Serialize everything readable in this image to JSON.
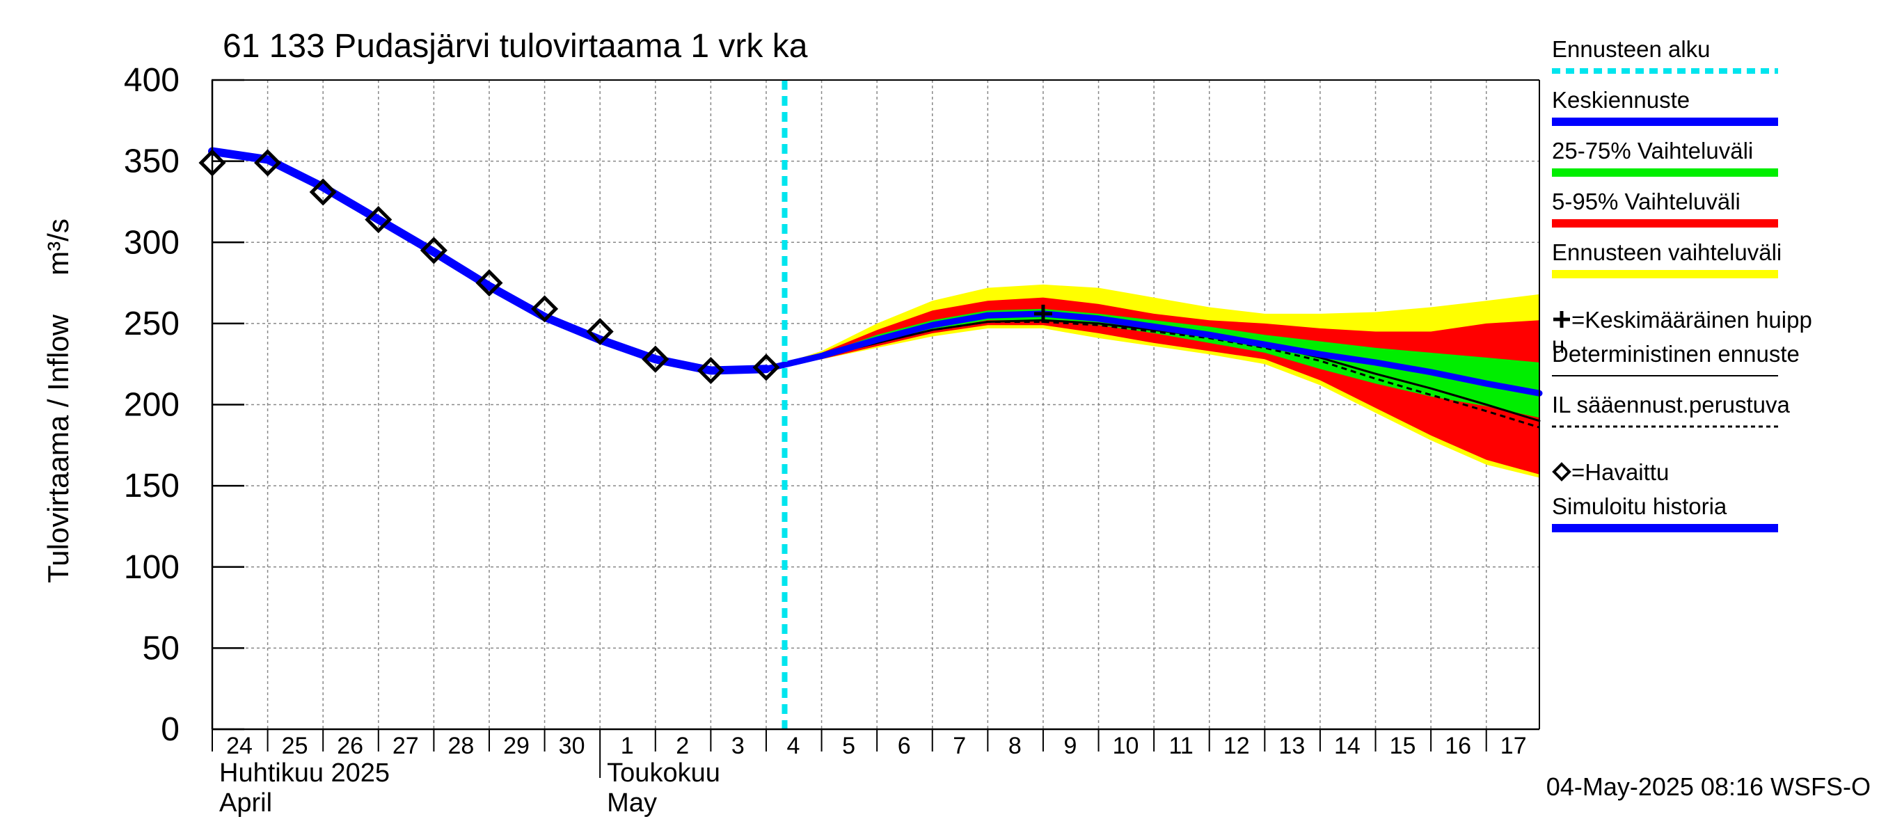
{
  "chart_data": {
    "type": "line",
    "title": "61 133 Pudasjärvi tulovirtaama 1 vrk ka",
    "ylabel": "Tulovirtaama / Inflow",
    "yunit": "m³/s",
    "ylim": [
      0,
      400
    ],
    "yticks": [
      0,
      50,
      100,
      150,
      200,
      250,
      300,
      350,
      400
    ],
    "grid": true,
    "legend_position": "right",
    "x_days": [
      "24",
      "25",
      "26",
      "27",
      "28",
      "29",
      "30",
      "1",
      "2",
      "3",
      "4",
      "5",
      "6",
      "7",
      "8",
      "9",
      "10",
      "11",
      "12",
      "13",
      "14",
      "15",
      "16",
      "17"
    ],
    "x_range": [
      "2025-04-24",
      "2025-05-17T23:00"
    ],
    "month_labels": [
      {
        "fi": "Huhtikuu  2025",
        "en": "April",
        "start": "2025-04-24"
      },
      {
        "fi": "Toukokuu",
        "en": "May",
        "start": "2025-05-01"
      }
    ],
    "forecast_start": "2025-05-04T08:00",
    "observed": {
      "name": "=Havaittu",
      "x": [
        "2025-04-24",
        "2025-04-25",
        "2025-04-26",
        "2025-04-27",
        "2025-04-28",
        "2025-04-29",
        "2025-04-30",
        "2025-05-01",
        "2025-05-02",
        "2025-05-03",
        "2025-05-04"
      ],
      "y": [
        349,
        349,
        331,
        314,
        295,
        275,
        259,
        245,
        228,
        221,
        223
      ]
    },
    "simulated_history": {
      "name": "Simuloitu historia",
      "x": [
        "2025-04-24",
        "2025-04-25",
        "2025-04-26",
        "2025-04-27",
        "2025-04-28",
        "2025-04-29",
        "2025-04-30",
        "2025-05-01",
        "2025-05-02",
        "2025-05-03",
        "2025-05-04"
      ],
      "y": [
        356,
        351,
        334,
        314,
        294,
        273,
        254,
        240,
        228,
        221,
        222
      ]
    },
    "forecast_x": [
      "2025-05-04",
      "2025-05-05",
      "2025-05-06",
      "2025-05-07",
      "2025-05-08",
      "2025-05-09",
      "2025-05-10",
      "2025-05-11",
      "2025-05-12",
      "2025-05-13",
      "2025-05-14",
      "2025-05-15",
      "2025-05-16",
      "2025-05-17",
      "2025-05-17T23:00"
    ],
    "mean_forecast": {
      "name": "Keskiennuste",
      "y": [
        222,
        230,
        240,
        249,
        255,
        256,
        253,
        248,
        243,
        237,
        231,
        226,
        220,
        213,
        207
      ]
    },
    "range_25_75": {
      "name": "25-75% Vaihteluväli",
      "upper": [
        222,
        231,
        243,
        252,
        258,
        259,
        256,
        252,
        248,
        243,
        239,
        235,
        232,
        229,
        226
      ],
      "lower": [
        222,
        229,
        238,
        246,
        252,
        252,
        249,
        244,
        238,
        232,
        222,
        213,
        205,
        199,
        192
      ]
    },
    "range_5_95": {
      "name": "5-95% Vaihteluväli",
      "upper": [
        222,
        232,
        246,
        258,
        264,
        266,
        262,
        256,
        252,
        250,
        247,
        245,
        245,
        250,
        252
      ],
      "lower": [
        222,
        228,
        236,
        244,
        249,
        249,
        244,
        238,
        233,
        228,
        215,
        198,
        181,
        166,
        157
      ]
    },
    "forecast_envelope": {
      "name": "Ennusteen vaihteluväli",
      "upper": [
        222,
        233,
        250,
        264,
        272,
        274,
        272,
        266,
        260,
        256,
        256,
        257,
        260,
        264,
        268
      ],
      "lower": [
        222,
        228,
        235,
        242,
        247,
        247,
        241,
        236,
        231,
        225,
        212,
        195,
        178,
        163,
        155
      ]
    },
    "deterministic": {
      "name": "Deterministinen ennuste",
      "y": [
        222,
        230,
        238,
        246,
        251,
        252,
        250,
        246,
        242,
        237,
        229,
        219,
        210,
        200,
        190
      ]
    },
    "il_forecast": {
      "name": "IL sääennust.perustuva",
      "y": [
        222,
        230,
        238,
        246,
        251,
        251,
        249,
        245,
        241,
        235,
        227,
        216,
        206,
        196,
        186
      ]
    },
    "mean_peak": {
      "name": "=Keskimääräinen huippu",
      "x": "2025-05-09",
      "y": 256
    },
    "legend": [
      {
        "key": "forecast_start",
        "label": "Ennusteen alku",
        "color": "#00e5ee",
        "style": "dashed"
      },
      {
        "key": "mean",
        "label": "Keskiennuste",
        "color": "#0000ff",
        "style": "line"
      },
      {
        "key": "r2575",
        "label": "25-75% Vaihteluväli",
        "color": "#00ee00",
        "style": "line"
      },
      {
        "key": "r595",
        "label": "5-95% Vaihteluväli",
        "color": "#ff0000",
        "style": "line"
      },
      {
        "key": "envelope",
        "label": "Ennusteen vaihteluväli",
        "color": "#ffff00",
        "style": "line"
      },
      {
        "key": "peak",
        "label": "=Keskimääräinen huippu",
        "color": "#000000",
        "style": "plus"
      },
      {
        "key": "det",
        "label": "Deterministinen ennuste",
        "color": "#000000",
        "style": "thin"
      },
      {
        "key": "il",
        "label": "IL sääennust.perustuva",
        "color": "#000000",
        "style": "dotted"
      },
      {
        "key": "obs",
        "label": "=Havaittu",
        "color": "#000000",
        "style": "diamond"
      },
      {
        "key": "sim",
        "label": "Simuloitu historia",
        "color": "#0000ff",
        "style": "line"
      }
    ],
    "footer": "04-May-2025 08:16 WSFS-O"
  }
}
